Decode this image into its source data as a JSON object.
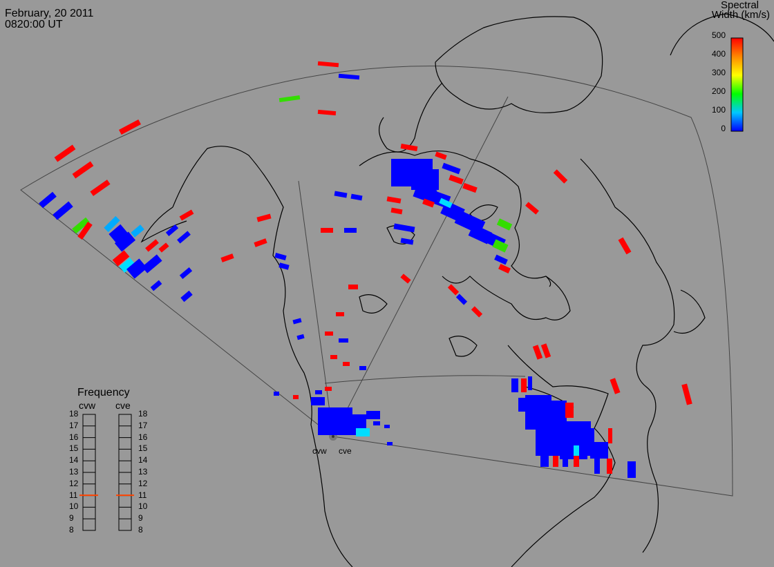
{
  "header": {
    "date": "February, 20 2011",
    "time": "0820:00 UT"
  },
  "colorbar": {
    "title_line1": "Spectral",
    "title_line2": "Width (km/s)",
    "ticks": [
      "500",
      "400",
      "300",
      "200",
      "100",
      "0"
    ],
    "tick_values": [
      500,
      400,
      300,
      200,
      100,
      0
    ],
    "range": [
      0,
      500
    ],
    "colors": [
      "#0000ff",
      "#00c8ff",
      "#00ff00",
      "#ffff00",
      "#ff8800",
      "#ff0000"
    ]
  },
  "frequency_panel": {
    "title": "Frequency",
    "radars": [
      "cvw",
      "cve"
    ],
    "scale": [
      "18",
      "17",
      "16",
      "15",
      "14",
      "13",
      "12",
      "11",
      "10",
      "9",
      "8"
    ],
    "scale_values": [
      18,
      17,
      16,
      15,
      14,
      13,
      12,
      11,
      10,
      9,
      8
    ],
    "range": [
      8,
      18
    ],
    "cvw_frequency": 11,
    "cve_frequency": 11,
    "marker_color": "#ff4400"
  },
  "radar_labels": {
    "west": "cvw",
    "east": "cve"
  },
  "colors": {
    "background": "#999999",
    "coast": "#000000",
    "fov": "#444444",
    "high_width": "#ff0000",
    "low_width": "#0000ff"
  },
  "map_features": [
    "coastline",
    "fov-outline",
    "beam-boundaries",
    "radar-site"
  ]
}
